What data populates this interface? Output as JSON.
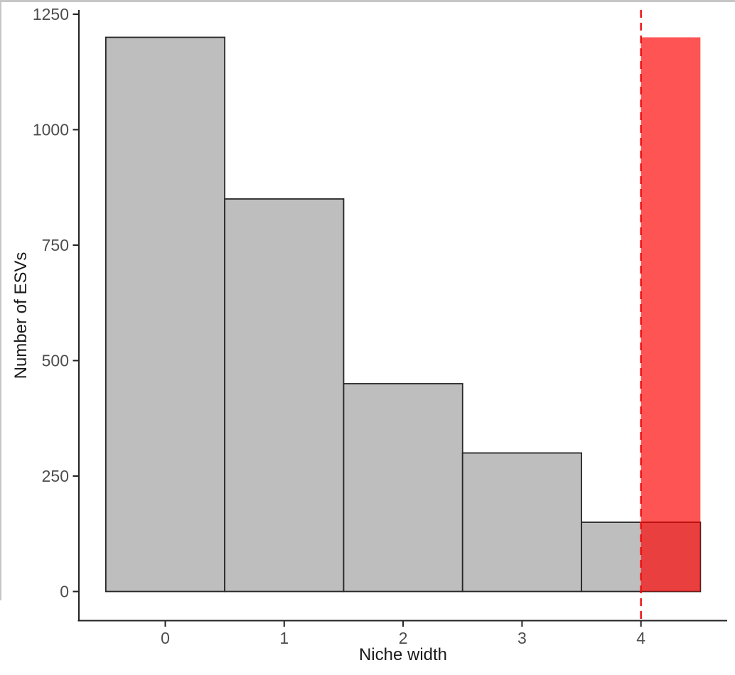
{
  "page": {
    "background": "#FFFFFF"
  },
  "frame": {
    "top_border_color": "#C6C6C6",
    "left_border_color": "#C6C6C6"
  },
  "axes": {
    "x_title": "Niche width",
    "y_title": "Number of ESVs",
    "tick_text_color": "#4D4D4D",
    "title_color": "#1A1A1A",
    "line_color": "#222222"
  },
  "chart_data": {
    "type": "bar",
    "subtype": "histogram",
    "title": "",
    "xlabel": "Niche width",
    "ylabel": "Number of ESVs",
    "bin_centers": [
      0,
      1,
      2,
      3,
      4
    ],
    "bin_width": 1,
    "values": [
      1200,
      850,
      450,
      300,
      150
    ],
    "xticks": [
      0,
      1,
      2,
      3,
      4
    ],
    "yticks": [
      0,
      250,
      500,
      750,
      1000,
      1250
    ],
    "xlim": [
      -0.73,
      4.73
    ],
    "ylim": [
      0,
      1265
    ],
    "grid": false,
    "legend": false,
    "theme": "classic",
    "bar_fill": "#BEBEBE",
    "bar_stroke": "#262626",
    "highlight_rect": {
      "xmin": 4,
      "xmax": 4.5,
      "ymin": 0,
      "ymax": 1200,
      "color": "#FF0000",
      "opacity": 0.67
    },
    "vline": {
      "x": 4,
      "color": "#EE0C0C",
      "style": "dashed"
    }
  }
}
